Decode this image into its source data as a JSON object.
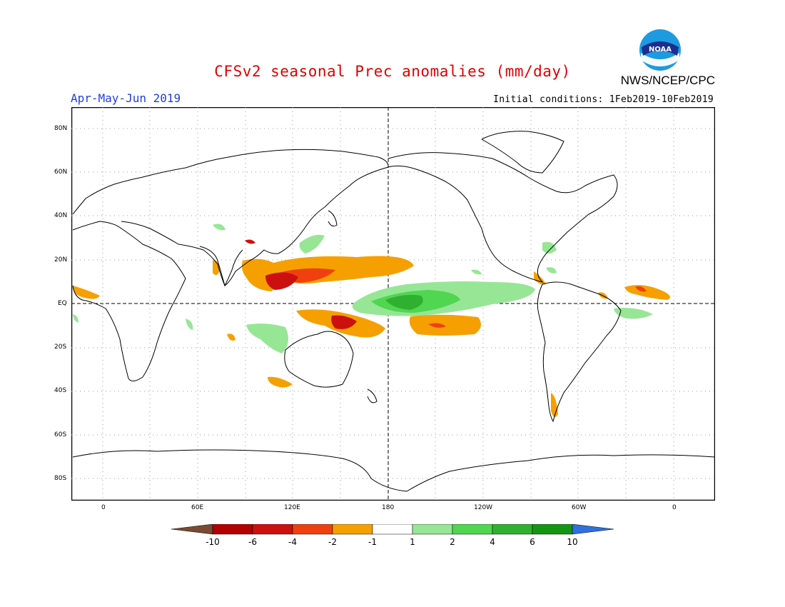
{
  "header": {
    "title": "CFSv2 seasonal Prec anomalies (mm/day)",
    "season": "Apr-May-Jun 2019",
    "initial_conditions": "Initial conditions: 1Feb2019-10Feb2019",
    "agency": "NWS/NCEP/CPC",
    "logo_text": "NOAA"
  },
  "axes": {
    "lat_labels": [
      "80N",
      "60N",
      "40N",
      "20N",
      "EQ",
      "20S",
      "40S",
      "60S",
      "80S"
    ],
    "lon_labels": [
      "0",
      "60E",
      "120E",
      "180",
      "120W",
      "60W",
      "0"
    ]
  },
  "colorbar": {
    "tick_labels": [
      "-10",
      "-6",
      "-4",
      "-2",
      "-1",
      "1",
      "2",
      "4",
      "6",
      "10"
    ],
    "colors": [
      "#7a4a32",
      "#b00000",
      "#cc1010",
      "#f04010",
      "#f5a000",
      "#ffffff",
      "#96e696",
      "#50d650",
      "#30b030",
      "#149614",
      "#3070e0"
    ]
  },
  "colors": {
    "title": "#e00000",
    "season": "#1f3fe0",
    "coast": "#000000"
  }
}
